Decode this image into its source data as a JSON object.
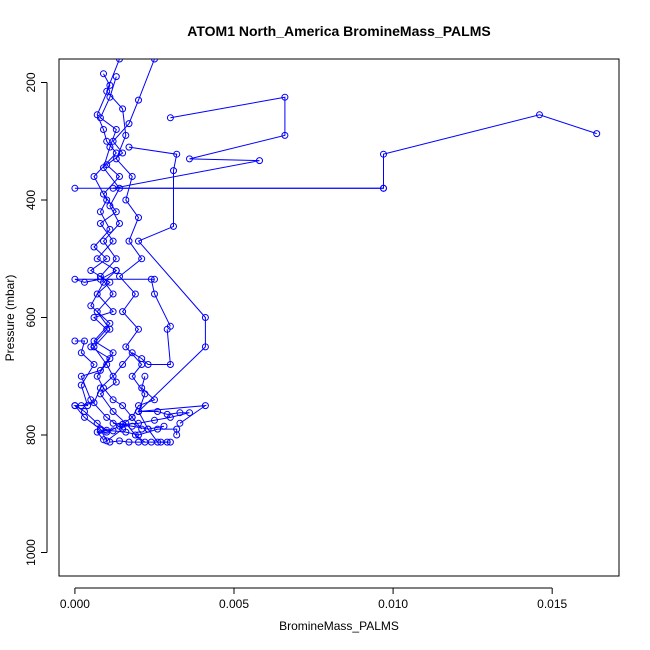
{
  "chart_data": {
    "type": "line",
    "title": "ATOM1 North_America BromineMass_PALMS",
    "xlabel": "BromineMass_PALMS",
    "ylabel": "Pressure (mbar)",
    "xlim": [
      -0.0005,
      0.0171
    ],
    "ylim": [
      1040,
      160
    ],
    "y_reversed": true,
    "grid": false,
    "legend": "none",
    "x_ticks": [
      {
        "value": 0.0,
        "label": "0.000"
      },
      {
        "value": 0.005,
        "label": "0.005"
      },
      {
        "value": 0.01,
        "label": "0.010"
      },
      {
        "value": 0.015,
        "label": "0.015"
      }
    ],
    "y_ticks": [
      {
        "value": 200,
        "label": "200"
      },
      {
        "value": 400,
        "label": "400"
      },
      {
        "value": 600,
        "label": "600"
      },
      {
        "value": 800,
        "label": "800"
      },
      {
        "value": 1000,
        "label": "1000"
      }
    ],
    "series": [
      {
        "color": "#0000ff",
        "points": [
          [
            0.0,
            750
          ],
          [
            0.0003,
            770
          ],
          [
            0.0008,
            790
          ],
          [
            0.001,
            810
          ],
          [
            0.0015,
            790
          ],
          [
            0.001,
            770
          ],
          [
            0.0005,
            740
          ],
          [
            0.0002,
            700
          ],
          [
            0.0008,
            690
          ],
          [
            0.0012,
            660
          ],
          [
            0.0006,
            640
          ],
          [
            0.0011,
            610
          ],
          [
            0.0005,
            580
          ],
          [
            0.0009,
            540
          ],
          [
            0.0013,
            520
          ],
          [
            0.0007,
            500
          ],
          [
            0.0012,
            470
          ],
          [
            0.0008,
            440
          ],
          [
            0.0013,
            420
          ],
          [
            0.0009,
            390
          ],
          [
            0.0014,
            360
          ],
          [
            0.001,
            340
          ],
          [
            0.0015,
            320
          ],
          [
            0.0012,
            300
          ],
          [
            0.0017,
            270
          ],
          [
            0.002,
            230
          ],
          [
            0.0025,
            160
          ]
        ]
      },
      {
        "color": "#0000ff",
        "points": [
          [
            0.0014,
            160
          ],
          [
            0.001,
            215
          ],
          [
            0.0015,
            245
          ],
          [
            0.0016,
            290
          ],
          [
            0.0013,
            330
          ],
          [
            0.0018,
            360
          ],
          [
            0.0016,
            400
          ],
          [
            0.002,
            430
          ],
          [
            0.0017,
            470
          ],
          [
            0.0021,
            500
          ],
          [
            0.0014,
            530
          ],
          [
            0.0019,
            560
          ],
          [
            0.0015,
            590
          ],
          [
            0.002,
            620
          ],
          [
            0.0016,
            650
          ],
          [
            0.0021,
            680
          ],
          [
            0.0018,
            700
          ],
          [
            0.0022,
            730
          ],
          [
            0.002,
            760
          ],
          [
            0.0023,
            790
          ],
          [
            0.0026,
            812
          ],
          [
            0.0029,
            812
          ]
        ]
      },
      {
        "color": "#0000ff",
        "points": [
          [
            0.0009,
            185
          ],
          [
            0.0011,
            205
          ],
          [
            0.0007,
            255
          ],
          [
            0.0009,
            280
          ],
          [
            0.001,
            300
          ],
          [
            0.0013,
            320
          ],
          [
            0.0006,
            360
          ],
          [
            0.001,
            400
          ],
          [
            0.0008,
            420
          ],
          [
            0.0011,
            450
          ],
          [
            0.0006,
            480
          ],
          [
            0.001,
            500
          ],
          [
            0.0005,
            520
          ],
          [
            0.0011,
            540
          ],
          [
            0.0007,
            560
          ],
          [
            0.0012,
            590
          ],
          [
            0.0006,
            600
          ],
          [
            0.001,
            620
          ],
          [
            0.0005,
            650
          ],
          [
            0.0011,
            670
          ],
          [
            0.0007,
            700
          ],
          [
            0.0009,
            720
          ],
          [
            0.0012,
            740
          ],
          [
            0.0015,
            750
          ],
          [
            0.0018,
            770
          ],
          [
            0.0021,
            790
          ]
        ]
      },
      {
        "color": "#0000ff",
        "points": [
          [
            0.0013,
            190
          ],
          [
            0.0011,
            225
          ],
          [
            0.0008,
            260
          ],
          [
            0.0013,
            280
          ],
          [
            0.0011,
            310
          ],
          [
            0.0009,
            345
          ],
          [
            0.0014,
            380
          ],
          [
            0.0011,
            410
          ],
          [
            0.0014,
            440
          ],
          [
            0.0009,
            470
          ],
          [
            0.0013,
            500
          ],
          [
            0.0008,
            530
          ],
          [
            0.0012,
            560
          ],
          [
            0.0007,
            590
          ],
          [
            0.0011,
            620
          ],
          [
            0.0006,
            650
          ],
          [
            0.001,
            680
          ],
          [
            0.0013,
            710
          ],
          [
            0.0008,
            730
          ],
          [
            0.0012,
            760
          ],
          [
            0.0016,
            780
          ],
          [
            0.0019,
            800
          ],
          [
            0.0022,
            812
          ]
        ]
      },
      {
        "color": "#0000ff",
        "points": [
          [
            0.003,
            260
          ],
          [
            0.0066,
            225
          ],
          [
            0.0066,
            290
          ],
          [
            0.0036,
            330
          ],
          [
            0.0058,
            333
          ],
          [
            0.0012,
            380
          ],
          [
            0.0097,
            380
          ],
          [
            0.0097,
            322
          ],
          [
            0.0146,
            255
          ],
          [
            0.0164,
            287
          ]
        ]
      },
      {
        "color": "#0000ff",
        "points": [
          [
            0.0,
            380
          ],
          [
            0.0097,
            380
          ]
        ]
      },
      {
        "color": "#0000ff",
        "points": [
          [
            0.0017,
            310
          ],
          [
            0.0032,
            322
          ],
          [
            0.0031,
            350
          ],
          [
            0.0031,
            445
          ],
          [
            0.002,
            470
          ],
          [
            0.0041,
            600
          ],
          [
            0.0041,
            650
          ],
          [
            0.002,
            760
          ],
          [
            0.0041,
            750
          ],
          [
            0.0033,
            780
          ]
        ]
      },
      {
        "color": "#0000ff",
        "points": [
          [
            0.003,
            615
          ],
          [
            0.0025,
            560
          ],
          [
            0.0024,
            535
          ],
          [
            0.0025,
            535
          ],
          [
            0.0,
            535
          ],
          [
            0.0003,
            540
          ],
          [
            0.0008,
            535
          ],
          [
            0.0013,
            520
          ]
        ]
      },
      {
        "color": "#0000ff",
        "points": [
          [
            0.0,
            640
          ],
          [
            0.0003,
            640
          ],
          [
            0.0002,
            660
          ],
          [
            0.0006,
            680
          ],
          [
            0.0002,
            715
          ],
          [
            0.0004,
            750
          ],
          [
            0.0,
            750
          ],
          [
            0.0003,
            760
          ],
          [
            0.0007,
            780
          ],
          [
            0.001,
            792
          ],
          [
            0.0008,
            792
          ],
          [
            0.0012,
            793
          ],
          [
            0.0016,
            795
          ],
          [
            0.002,
            800
          ],
          [
            0.0026,
            790
          ],
          [
            0.0032,
            790
          ],
          [
            0.0032,
            800
          ]
        ]
      },
      {
        "color": "#0000ff",
        "points": [
          [
            0.002,
            760
          ],
          [
            0.0026,
            760
          ],
          [
            0.0029,
            765
          ],
          [
            0.0033,
            762
          ],
          [
            0.0036,
            762
          ],
          [
            0.003,
            770
          ],
          [
            0.0025,
            775
          ],
          [
            0.002,
            780
          ],
          [
            0.0015,
            782
          ],
          [
            0.0012,
            780
          ],
          [
            0.0018,
            785
          ],
          [
            0.0023,
            790
          ],
          [
            0.0028,
            785
          ]
        ]
      },
      {
        "color": "#0000ff",
        "points": [
          [
            0.0011,
            812
          ],
          [
            0.0014,
            810
          ],
          [
            0.0017,
            812
          ],
          [
            0.002,
            812
          ],
          [
            0.0024,
            812
          ],
          [
            0.0027,
            812
          ],
          [
            0.003,
            812
          ]
        ]
      },
      {
        "color": "#0000ff",
        "points": [
          [
            0.0022,
            700
          ],
          [
            0.0021,
            720
          ],
          [
            0.0025,
            740
          ],
          [
            0.002,
            750
          ],
          [
            0.0018,
            770
          ],
          [
            0.0014,
            785
          ],
          [
            0.001,
            795
          ],
          [
            0.0007,
            795
          ],
          [
            0.0009,
            808
          ]
        ]
      },
      {
        "color": "#0000ff",
        "points": [
          [
            0.0002,
            750
          ],
          [
            0.0006,
            745
          ],
          [
            0.0008,
            720
          ],
          [
            0.0012,
            700
          ],
          [
            0.0015,
            680
          ],
          [
            0.0018,
            660
          ],
          [
            0.0021,
            670
          ],
          [
            0.0023,
            680
          ],
          [
            0.003,
            680
          ],
          [
            0.0029,
            620
          ]
        ]
      }
    ]
  }
}
